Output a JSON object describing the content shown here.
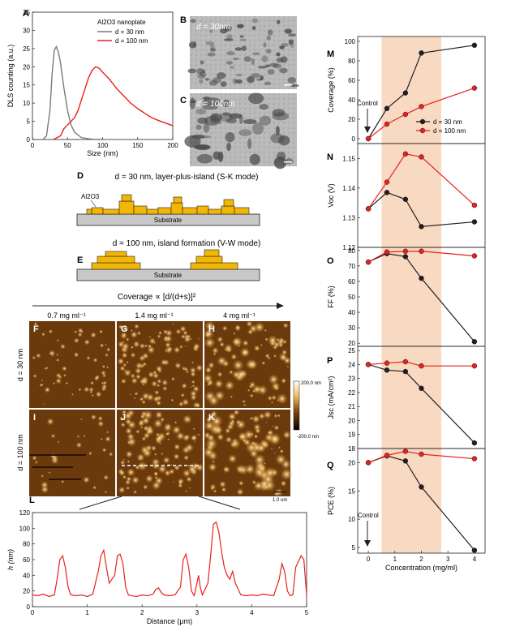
{
  "panel_letters": {
    "A": "A",
    "B": "B",
    "C": "C",
    "D": "D",
    "E": "E",
    "F": "F",
    "G": "G",
    "H": "H",
    "I": "I",
    "J": "J",
    "K": "K",
    "L": "L",
    "M": "M",
    "N": "N",
    "O": "O",
    "P": "P",
    "Q": "Q"
  },
  "colors": {
    "black": "#231f20",
    "red": "#e8211c",
    "gray": "#7a7a7a",
    "gold": "#f2b705",
    "shade": "#f8d9c2",
    "substrate": "#c8c8c8"
  },
  "tem": {
    "b_label": "d = 30nm",
    "c_label": "d = 100nm"
  },
  "schematic": {
    "d_title": "d = 30 nm, layer-plus-island (S-K mode)",
    "e_title": "d = 100 nm, island formation (V-W mode)",
    "al2o3": "Al2O3",
    "substrate": "Substrate"
  },
  "afm": {
    "coverage_formula": "Coverage ∝ [d/(d+s)]²",
    "concentrations": [
      "0.7 mg ml⁻¹",
      "1.4 mg ml⁻¹",
      "4 mg ml⁻¹"
    ],
    "row_labels": [
      "d = 30 nm",
      "d = 100 nm"
    ],
    "scale_top": "200.0 nm",
    "scale_bottom": "-200.0 nm",
    "scalebar": "1.0 um"
  },
  "chart_data": [
    {
      "id": "A",
      "type": "line",
      "title": "Al2O3 nanoplate",
      "xlabel": "Size (nm)",
      "ylabel": "DLS counting (a.u.)",
      "xlim": [
        0,
        200
      ],
      "ylim": [
        0,
        35
      ],
      "xticks": [
        0,
        50,
        100,
        150,
        200
      ],
      "yticks": [
        0,
        5,
        10,
        15,
        20,
        25,
        30,
        35
      ],
      "series": [
        {
          "name": "d = 30 nm",
          "color": "#7a7a7a",
          "x": [
            15,
            20,
            25,
            28,
            31,
            34,
            37,
            40,
            45,
            50,
            55,
            60,
            70,
            80,
            90,
            100
          ],
          "y": [
            0,
            1,
            8,
            18,
            24.5,
            25.5,
            24,
            21,
            14,
            8,
            4,
            2,
            0.5,
            0.2,
            0,
            0
          ]
        },
        {
          "name": "d = 100 nm",
          "color": "#e8211c",
          "x": [
            30,
            40,
            45,
            50,
            55,
            60,
            65,
            70,
            75,
            80,
            85,
            90,
            95,
            100,
            110,
            120,
            130,
            140,
            150,
            160,
            170,
            180,
            190,
            200
          ],
          "y": [
            0,
            1,
            3,
            4,
            5,
            6,
            8,
            11,
            14,
            17,
            19,
            20,
            19.6,
            18.5,
            16.5,
            14,
            12,
            10,
            8.5,
            7.2,
            6,
            5.2,
            4.5,
            3.8
          ]
        }
      ]
    },
    {
      "id": "L",
      "type": "line",
      "xlabel": "Distance (μm)",
      "ylabel": "h (nm)",
      "xlim": [
        0,
        5
      ],
      "ylim": [
        0,
        120
      ],
      "xticks": [
        0,
        1,
        2,
        3,
        4,
        5
      ],
      "yticks": [
        0,
        20,
        40,
        60,
        80,
        100,
        120
      ],
      "series": [
        {
          "name": "height profile",
          "color": "#e8211c",
          "x": [
            0,
            0.1,
            0.2,
            0.3,
            0.4,
            0.45,
            0.5,
            0.55,
            0.6,
            0.65,
            0.7,
            0.8,
            0.9,
            1.0,
            1.1,
            1.2,
            1.25,
            1.3,
            1.35,
            1.4,
            1.5,
            1.55,
            1.6,
            1.65,
            1.7,
            1.75,
            1.8,
            1.9,
            2.0,
            2.1,
            2.2,
            2.25,
            2.3,
            2.35,
            2.4,
            2.5,
            2.6,
            2.7,
            2.75,
            2.8,
            2.85,
            2.9,
            2.95,
            3.0,
            3.03,
            3.06,
            3.1,
            3.2,
            3.25,
            3.3,
            3.35,
            3.4,
            3.45,
            3.5,
            3.55,
            3.6,
            3.65,
            3.7,
            3.8,
            3.9,
            4.0,
            4.1,
            4.2,
            4.3,
            4.4,
            4.5,
            4.55,
            4.6,
            4.65,
            4.7,
            4.75,
            4.8,
            4.9,
            4.95,
            5.0
          ],
          "y": [
            15,
            14,
            16,
            13,
            15,
            35,
            60,
            65,
            50,
            25,
            15,
            14,
            15,
            13,
            16,
            45,
            65,
            72,
            50,
            30,
            40,
            65,
            67,
            55,
            25,
            15,
            14,
            13,
            15,
            14,
            16,
            22,
            24,
            18,
            15,
            14,
            15,
            25,
            60,
            67,
            50,
            20,
            14,
            30,
            40,
            25,
            15,
            30,
            65,
            105,
            108,
            95,
            70,
            50,
            40,
            35,
            45,
            30,
            15,
            14,
            15,
            14,
            16,
            15,
            14,
            35,
            55,
            45,
            20,
            14,
            15,
            50,
            65,
            60,
            15
          ]
        }
      ]
    },
    {
      "id": "M",
      "type": "line",
      "xlabel": "",
      "ylabel": "Coverage (%)",
      "xlim": [
        -0.5,
        4.5
      ],
      "ylim": [
        -5,
        105
      ],
      "yticks": [
        0,
        20,
        40,
        60,
        80,
        100
      ],
      "categories_x": [
        0,
        0.7,
        1.4,
        2,
        4
      ],
      "annotation": "Control",
      "series": [
        {
          "name": "d = 30 nm",
          "color": "#231f20",
          "values": [
            0,
            31,
            47,
            88,
            96
          ]
        },
        {
          "name": "d = 100 nm",
          "color": "#e8211c",
          "values": [
            0,
            15,
            25,
            33,
            52
          ]
        }
      ]
    },
    {
      "id": "N",
      "type": "line",
      "ylabel": "Voc (V)",
      "ylim": [
        1.12,
        1.155
      ],
      "yticks": [
        1.12,
        1.13,
        1.14,
        1.15
      ],
      "categories_x": [
        0,
        0.7,
        1.4,
        2,
        4
      ],
      "series": [
        {
          "name": "d = 30 nm",
          "color": "#231f20",
          "values": [
            1.133,
            1.1385,
            1.1362,
            1.127,
            1.1286
          ]
        },
        {
          "name": "d = 100 nm",
          "color": "#e8211c",
          "values": [
            1.133,
            1.142,
            1.1515,
            1.1505,
            1.1342
          ]
        }
      ]
    },
    {
      "id": "O",
      "type": "line",
      "ylabel": "FF (%)",
      "ylim": [
        18,
        82
      ],
      "yticks": [
        20,
        30,
        40,
        50,
        60,
        70,
        80
      ],
      "categories_x": [
        0,
        0.7,
        1.4,
        2,
        4
      ],
      "series": [
        {
          "name": "d = 30 nm",
          "color": "#231f20",
          "values": [
            72.5,
            78,
            76,
            62,
            21
          ]
        },
        {
          "name": "d = 100 nm",
          "color": "#e8211c",
          "values": [
            72.5,
            79,
            79.5,
            79.5,
            76.5
          ]
        }
      ]
    },
    {
      "id": "P",
      "type": "line",
      "ylabel": "Jsc (mA/cm²)",
      "ylim": [
        18,
        25.3
      ],
      "yticks": [
        18,
        19,
        20,
        21,
        22,
        23,
        24,
        25
      ],
      "categories_x": [
        0,
        0.7,
        1.4,
        2,
        4
      ],
      "series": [
        {
          "name": "d = 30 nm",
          "color": "#231f20",
          "values": [
            24,
            23.6,
            23.5,
            22.3,
            18.4
          ]
        },
        {
          "name": "d = 100 nm",
          "color": "#e8211c",
          "values": [
            24,
            24.1,
            24.2,
            23.9,
            23.9
          ]
        }
      ]
    },
    {
      "id": "Q",
      "type": "line",
      "xlabel": "Concentration (mg/ml)",
      "ylabel": "PCE (%)",
      "ylim": [
        4,
        22.5
      ],
      "yticks": [
        5,
        10,
        15,
        20
      ],
      "xticks": [
        0,
        1,
        2,
        3,
        4
      ],
      "categories_x": [
        0,
        0.7,
        1.4,
        2,
        4
      ],
      "annotation": "Control",
      "series": [
        {
          "name": "d = 30 nm",
          "color": "#231f20",
          "values": [
            20,
            21.2,
            20.3,
            15.7,
            4.5
          ]
        },
        {
          "name": "d = 100 nm",
          "color": "#e8211c",
          "values": [
            20,
            21.3,
            22,
            21.5,
            20.7
          ]
        }
      ]
    }
  ]
}
